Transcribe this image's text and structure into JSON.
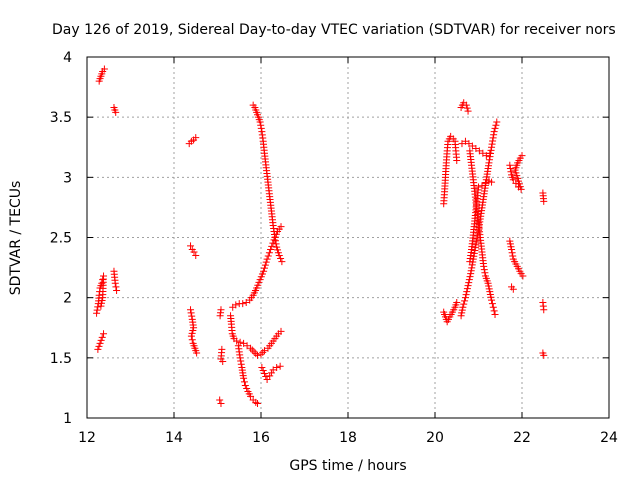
{
  "chart_data": {
    "type": "scatter",
    "title": "Day 126 of 2019, Sidereal Day-to-day VTEC variation (SDTVAR) for receiver nors",
    "xlabel": "GPS time / hours",
    "ylabel": "SDTVAR / TECUs",
    "xlim": [
      12,
      24
    ],
    "ylim": [
      1,
      4
    ],
    "xticks": [
      "12",
      "14",
      "16",
      "18",
      "20",
      "22",
      "24"
    ],
    "yticks": [
      "1",
      "1.5",
      "2",
      "2.5",
      "3",
      "3.5",
      "4"
    ],
    "grid": true,
    "marker": "+",
    "color": "#ff0000",
    "series": [
      {
        "name": "SDTVAR",
        "segments": [
          [
            [
              12.28,
              3.8
            ],
            [
              12.32,
              3.84
            ],
            [
              12.36,
              3.88
            ],
            [
              12.4,
              3.9
            ]
          ],
          [
            [
              12.62,
              3.58
            ],
            [
              12.66,
              3.54
            ]
          ],
          [
            [
              12.22,
              1.87
            ],
            [
              12.26,
              1.95
            ],
            [
              12.28,
              2.02
            ],
            [
              12.3,
              2.08
            ],
            [
              12.34,
              2.12
            ],
            [
              12.38,
              2.18
            ],
            [
              12.36,
              2.0
            ],
            [
              12.32,
              1.93
            ]
          ],
          [
            [
              12.25,
              1.57
            ],
            [
              12.3,
              1.62
            ],
            [
              12.35,
              1.67
            ],
            [
              12.38,
              1.7
            ]
          ],
          [
            [
              12.62,
              2.22
            ],
            [
              12.65,
              2.12
            ],
            [
              12.68,
              2.06
            ]
          ],
          [
            [
              14.35,
              3.28
            ],
            [
              14.4,
              3.3
            ],
            [
              14.45,
              3.31
            ],
            [
              14.5,
              3.33
            ]
          ],
          [
            [
              14.38,
              2.43
            ],
            [
              14.42,
              2.4
            ],
            [
              14.46,
              2.38
            ],
            [
              14.5,
              2.35
            ]
          ],
          [
            [
              14.38,
              1.9
            ],
            [
              14.42,
              1.82
            ],
            [
              14.45,
              1.75
            ],
            [
              14.4,
              1.68
            ],
            [
              14.44,
              1.62
            ],
            [
              14.48,
              1.58
            ],
            [
              14.52,
              1.54
            ]
          ],
          [
            [
              15.08,
              1.9
            ],
            [
              15.06,
              1.85
            ]
          ],
          [
            [
              15.1,
              1.57
            ],
            [
              15.08,
              1.49
            ],
            [
              15.12,
              1.47
            ]
          ],
          [
            [
              15.05,
              1.15
            ],
            [
              15.08,
              1.12
            ]
          ],
          [
            [
              15.82,
              3.6
            ],
            [
              15.86,
              3.58
            ],
            [
              15.92,
              3.52
            ],
            [
              15.98,
              3.46
            ],
            [
              16.02,
              3.38
            ],
            [
              16.05,
              3.3
            ],
            [
              16.08,
              3.2
            ],
            [
              16.12,
              3.08
            ],
            [
              16.16,
              2.96
            ],
            [
              16.2,
              2.84
            ],
            [
              16.24,
              2.72
            ],
            [
              16.28,
              2.6
            ],
            [
              16.32,
              2.5
            ],
            [
              16.36,
              2.42
            ],
            [
              16.42,
              2.35
            ],
            [
              16.48,
              2.3
            ]
          ],
          [
            [
              15.35,
              1.92
            ],
            [
              15.42,
              1.94
            ],
            [
              15.5,
              1.95
            ],
            [
              15.58,
              1.95
            ],
            [
              15.66,
              1.96
            ],
            [
              15.74,
              1.98
            ],
            [
              15.82,
              2.02
            ],
            [
              15.9,
              2.08
            ],
            [
              15.98,
              2.15
            ],
            [
              16.06,
              2.22
            ],
            [
              16.14,
              2.32
            ],
            [
              16.22,
              2.4
            ],
            [
              16.3,
              2.48
            ],
            [
              16.38,
              2.55
            ],
            [
              16.46,
              2.59
            ]
          ],
          [
            [
              15.3,
              1.85
            ],
            [
              15.32,
              1.78
            ],
            [
              15.34,
              1.7
            ],
            [
              15.38,
              1.66
            ],
            [
              15.44,
              1.64
            ],
            [
              15.52,
              1.63
            ],
            [
              15.6,
              1.62
            ],
            [
              15.68,
              1.6
            ],
            [
              15.76,
              1.58
            ],
            [
              15.84,
              1.55
            ],
            [
              15.92,
              1.52
            ],
            [
              16.0,
              1.53
            ],
            [
              16.08,
              1.56
            ],
            [
              16.16,
              1.58
            ],
            [
              16.24,
              1.62
            ],
            [
              16.32,
              1.66
            ],
            [
              16.4,
              1.7
            ],
            [
              16.46,
              1.72
            ]
          ],
          [
            [
              15.48,
              1.6
            ],
            [
              15.52,
              1.5
            ],
            [
              15.56,
              1.42
            ],
            [
              15.6,
              1.33
            ],
            [
              15.64,
              1.27
            ],
            [
              15.7,
              1.22
            ],
            [
              15.76,
              1.18
            ],
            [
              15.82,
              1.15
            ],
            [
              15.88,
              1.13
            ],
            [
              15.92,
              1.12
            ]
          ],
          [
            [
              16.02,
              1.42
            ],
            [
              16.08,
              1.37
            ],
            [
              16.14,
              1.32
            ],
            [
              16.2,
              1.35
            ],
            [
              16.28,
              1.4
            ],
            [
              16.36,
              1.42
            ],
            [
              16.44,
              1.43
            ]
          ],
          [
            [
              20.2,
              2.78
            ],
            [
              20.22,
              2.88
            ],
            [
              20.24,
              3.0
            ],
            [
              20.26,
              3.12
            ],
            [
              20.28,
              3.22
            ],
            [
              20.3,
              3.3
            ],
            [
              20.36,
              3.34
            ],
            [
              20.42,
              3.32
            ],
            [
              20.46,
              3.3
            ],
            [
              20.48,
              3.22
            ],
            [
              20.5,
              3.14
            ]
          ],
          [
            [
              20.2,
              1.88
            ],
            [
              20.24,
              1.84
            ],
            [
              20.28,
              1.8
            ],
            [
              20.34,
              1.84
            ],
            [
              20.4,
              1.88
            ],
            [
              20.46,
              1.92
            ],
            [
              20.5,
              1.96
            ]
          ],
          [
            [
              20.6,
              3.58
            ],
            [
              20.66,
              3.62
            ],
            [
              20.72,
              3.6
            ],
            [
              20.76,
              3.55
            ]
          ],
          [
            [
              20.62,
              3.28
            ],
            [
              20.7,
              3.3
            ],
            [
              20.78,
              3.28
            ],
            [
              20.86,
              3.26
            ],
            [
              20.94,
              3.24
            ],
            [
              21.02,
              3.22
            ],
            [
              21.1,
              3.2
            ],
            [
              21.18,
              3.18
            ],
            [
              21.26,
              3.2
            ]
          ],
          [
            [
              20.6,
              1.85
            ],
            [
              20.64,
              1.92
            ],
            [
              20.7,
              2.0
            ],
            [
              20.76,
              2.1
            ],
            [
              20.82,
              2.2
            ],
            [
              20.88,
              2.32
            ],
            [
              20.94,
              2.44
            ],
            [
              21.0,
              2.56
            ],
            [
              21.06,
              2.7
            ],
            [
              21.12,
              2.84
            ],
            [
              21.18,
              2.98
            ],
            [
              21.24,
              3.12
            ],
            [
              21.3,
              3.25
            ],
            [
              21.36,
              3.38
            ],
            [
              21.42,
              3.46
            ]
          ],
          [
            [
              20.8,
              2.3
            ],
            [
              20.84,
              2.4
            ],
            [
              20.88,
              2.52
            ],
            [
              20.92,
              2.66
            ],
            [
              20.96,
              2.8
            ],
            [
              21.0,
              2.92
            ],
            [
              21.08,
              2.93
            ],
            [
              21.16,
              2.95
            ],
            [
              21.24,
              2.97
            ],
            [
              21.3,
              2.96
            ]
          ],
          [
            [
              20.8,
              3.22
            ],
            [
              20.84,
              3.1
            ],
            [
              20.88,
              2.98
            ],
            [
              20.92,
              2.86
            ],
            [
              20.96,
              2.74
            ],
            [
              21.0,
              2.62
            ],
            [
              21.04,
              2.5
            ],
            [
              21.08,
              2.38
            ],
            [
              21.12,
              2.26
            ],
            [
              21.16,
              2.18
            ],
            [
              21.22,
              2.12
            ],
            [
              21.26,
              2.05
            ],
            [
              21.3,
              1.98
            ],
            [
              21.34,
              1.92
            ],
            [
              21.38,
              1.86
            ]
          ],
          [
            [
              21.72,
              3.1
            ],
            [
              21.76,
              3.02
            ],
            [
              21.8,
              2.98
            ],
            [
              21.86,
              2.95
            ],
            [
              21.92,
              2.92
            ],
            [
              21.98,
              2.9
            ],
            [
              21.84,
              3.06
            ],
            [
              21.9,
              3.12
            ],
            [
              21.96,
              3.16
            ],
            [
              22.0,
              3.18
            ]
          ],
          [
            [
              21.72,
              2.47
            ],
            [
              21.76,
              2.4
            ],
            [
              21.8,
              2.32
            ],
            [
              21.86,
              2.28
            ],
            [
              21.92,
              2.24
            ],
            [
              21.98,
              2.2
            ],
            [
              22.02,
              2.18
            ]
          ],
          [
            [
              21.76,
              2.09
            ],
            [
              21.8,
              2.07
            ]
          ],
          [
            [
              22.48,
              2.87
            ],
            [
              22.5,
              2.8
            ]
          ],
          [
            [
              22.48,
              1.96
            ],
            [
              22.5,
              1.9
            ]
          ],
          [
            [
              22.48,
              1.54
            ],
            [
              22.5,
              1.52
            ]
          ]
        ]
      }
    ]
  }
}
